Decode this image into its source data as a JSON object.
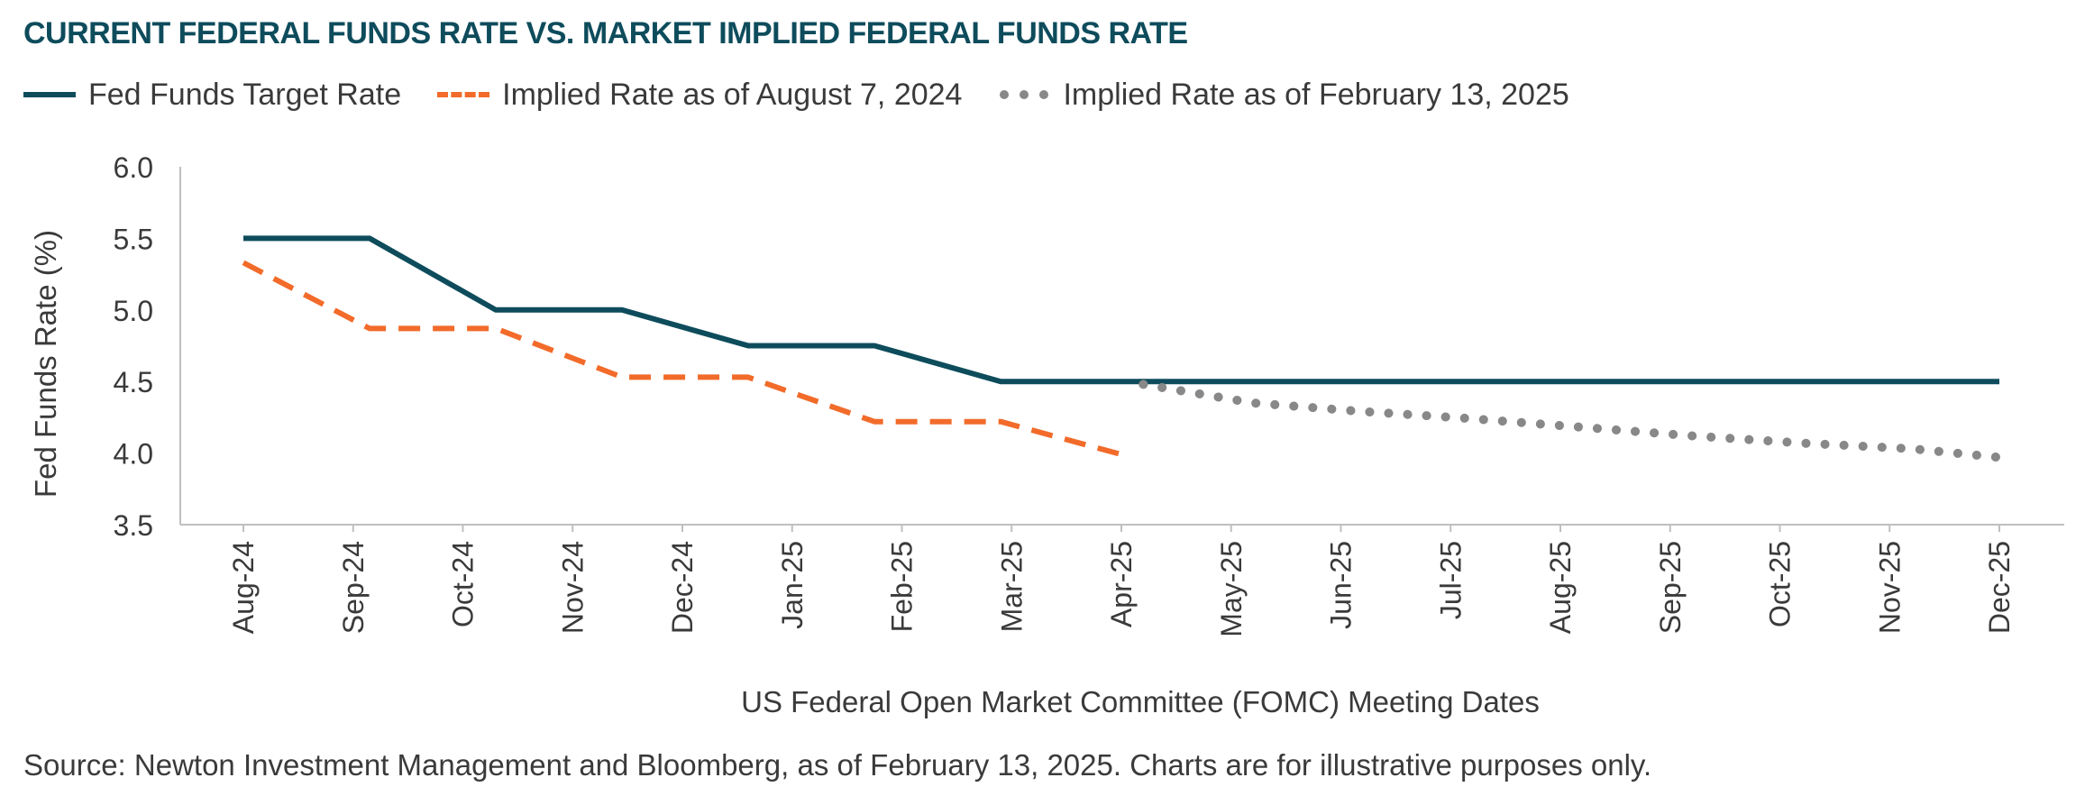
{
  "title": "CURRENT FEDERAL FUNDS RATE VS. MARKET IMPLIED FEDERAL FUNDS RATE",
  "source": "Source: Newton Investment Management and Bloomberg, as of February 13, 2025. Charts are for illustrative purposes only.",
  "colors": {
    "target": "#0e4c5c",
    "aug": "#f26b2a",
    "feb": "#888888",
    "title": "#0e4c5c",
    "axis": "#bfbfbf"
  },
  "chart_data": {
    "type": "line",
    "xlabel": "US Federal Open Market Committee (FOMC) Meeting Dates",
    "ylabel": "Fed Funds Rate (%)",
    "ylim": [
      3.5,
      6.0
    ],
    "yticks": [
      "6.0",
      "5.5",
      "5.0",
      "4.5",
      "4.0",
      "3.5"
    ],
    "categories": [
      "Aug-24",
      "Sep-24",
      "Oct-24",
      "Nov-24",
      "Dec-24",
      "Jan-25",
      "Feb-25",
      "Mar-25",
      "Apr-25",
      "May-25",
      "Jun-25",
      "Jul-25",
      "Aug-25",
      "Sep-25",
      "Oct-25",
      "Nov-25",
      "Dec-25"
    ],
    "grid": false,
    "legend": "top-left",
    "series": [
      {
        "name": "Fed Funds Target Rate",
        "style": "solid",
        "x": [
          0,
          1.15,
          2.3,
          3.45,
          4.6,
          5.75,
          6.9,
          8.05,
          16.0
        ],
        "y": [
          5.5,
          5.5,
          5.0,
          5.0,
          4.75,
          4.75,
          4.5,
          4.5,
          4.5
        ]
      },
      {
        "name": "Implied Rate as of August 7, 2024",
        "style": "dashed",
        "x": [
          0,
          1.15,
          2.3,
          3.45,
          4.6,
          5.75,
          6.9,
          8.05
        ],
        "y": [
          5.33,
          4.87,
          4.87,
          4.53,
          4.53,
          4.22,
          4.22,
          3.98
        ]
      },
      {
        "name": "Implied Rate as of February 13, 2025",
        "style": "dotted",
        "x": [
          8.2,
          9.2,
          10.2,
          11.2,
          12.2,
          13.2,
          14.2,
          15.2,
          16.0
        ],
        "y": [
          4.48,
          4.35,
          4.29,
          4.24,
          4.18,
          4.12,
          4.07,
          4.03,
          3.97
        ]
      }
    ]
  }
}
